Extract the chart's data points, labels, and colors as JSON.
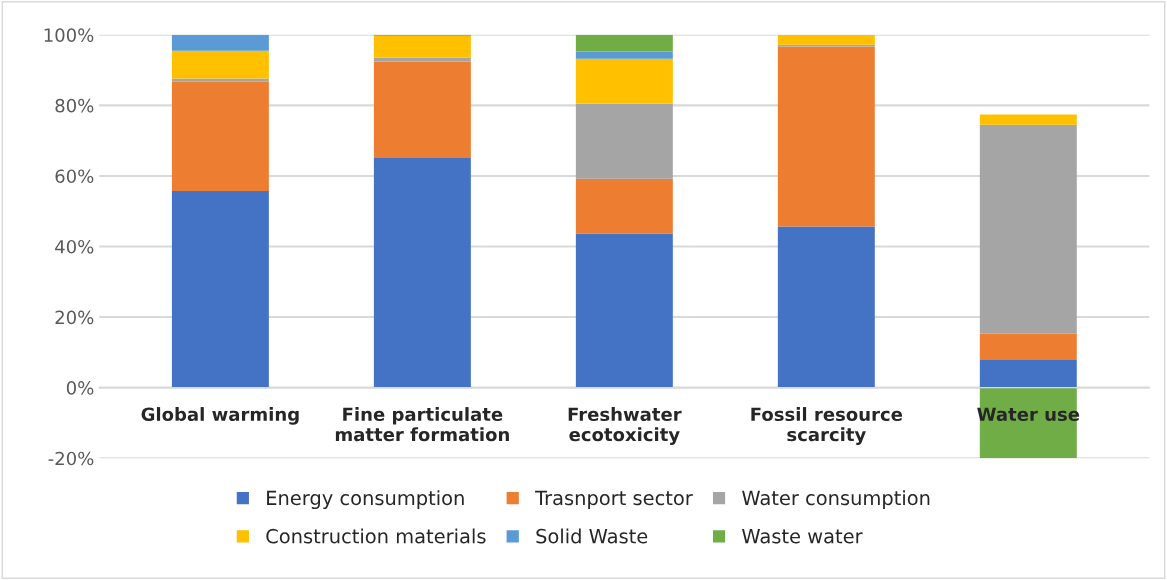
{
  "chart_data": {
    "type": "bar",
    "stacked": true,
    "categories": [
      "Global warming",
      "Fine particulate\nmatter formation",
      "Freshwater\necotoxicity",
      "Fossil resource\nscarcity",
      "Water use"
    ],
    "series": [
      {
        "name": "Energy consumption",
        "color": "#4472c4",
        "values": [
          55.7,
          65.1,
          43.6,
          45.7,
          7.8
        ]
      },
      {
        "name": "Trasnport sector",
        "color": "#ed7d31",
        "values": [
          31.0,
          27.3,
          15.6,
          51.0,
          7.5
        ]
      },
      {
        "name": "Water consumption",
        "color": "#a5a5a5",
        "values": [
          0.9,
          1.1,
          21.3,
          0.5,
          59.2
        ]
      },
      {
        "name": "Construction materials",
        "color": "#ffc000",
        "values": [
          7.9,
          6.2,
          12.7,
          2.8,
          2.9
        ]
      },
      {
        "name": "Solid Waste",
        "color": "#5b9bd5",
        "values": [
          4.5,
          null,
          2.1,
          null,
          null
        ]
      },
      {
        "name": "Waste water",
        "color": "#70ad47",
        "values": [
          null,
          0.3,
          4.7,
          null,
          -20
        ]
      }
    ],
    "ylim": [
      -20,
      100
    ],
    "yticks": [
      {
        "value": -20,
        "label": "-20%"
      },
      {
        "value": 0,
        "label": "0%"
      },
      {
        "value": 20,
        "label": "20%"
      },
      {
        "value": 40,
        "label": "40%"
      },
      {
        "value": 60,
        "label": "60%"
      },
      {
        "value": 80,
        "label": "80%"
      },
      {
        "value": 100,
        "label": "100%"
      }
    ],
    "grid": "y",
    "legend": "bottom"
  }
}
